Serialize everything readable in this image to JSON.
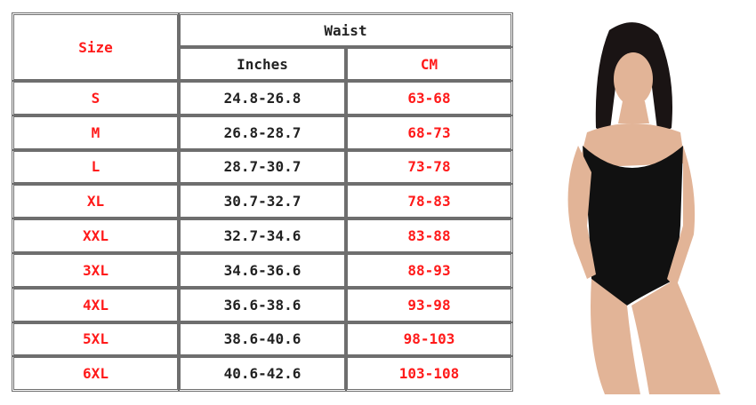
{
  "table": {
    "size_header": "Size",
    "waist_header": "Waist",
    "inches_header": "Inches",
    "cm_header": "CM",
    "rows": [
      {
        "size": "S",
        "inches": "24.8-26.8",
        "cm": "63-68"
      },
      {
        "size": "M",
        "inches": "26.8-28.7",
        "cm": "68-73"
      },
      {
        "size": "L",
        "inches": "28.7-30.7",
        "cm": "73-78"
      },
      {
        "size": "XL",
        "inches": "30.7-32.7",
        "cm": "78-83"
      },
      {
        "size": "XXL",
        "inches": "32.7-34.6",
        "cm": "83-88"
      },
      {
        "size": "3XL",
        "inches": "34.6-36.6",
        "cm": "88-93"
      },
      {
        "size": "4XL",
        "inches": "36.6-38.6",
        "cm": "93-98"
      },
      {
        "size": "5XL",
        "inches": "38.6-40.6",
        "cm": "98-103"
      },
      {
        "size": "6XL",
        "inches": "40.6-42.6",
        "cm": "103-108"
      }
    ]
  },
  "colors": {
    "accent_red": "#ff1a1a",
    "text_dark": "#222222",
    "border": "#6e6e6e"
  }
}
